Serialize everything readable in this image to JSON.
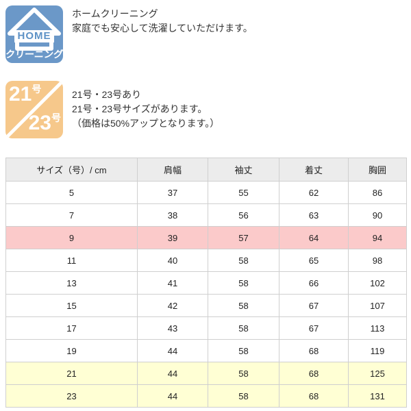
{
  "features": [
    {
      "badge": {
        "home_label": "HOME",
        "bottom_label": "クリーニング",
        "bg": "#6b98c8",
        "home_text_color": "#5e92c6"
      },
      "lines": [
        "ホームクリーニング",
        "家庭でも安心して洗濯していただけます。"
      ]
    },
    {
      "badge": {
        "top_num": "21",
        "top_suffix": "号",
        "bottom_num": "23",
        "bottom_suffix": "号",
        "bg": "#f6c88b"
      },
      "lines": [
        "21号・23号あり",
        "21号・23号サイズがあります。",
        "（価格は50%アップとなります。）"
      ]
    }
  ],
  "size_table": {
    "headers": [
      "サイズ（号）/ cm",
      "肩幅",
      "袖丈",
      "着丈",
      "胸囲"
    ],
    "rows": [
      {
        "values": [
          "5",
          "37",
          "55",
          "62",
          "86"
        ],
        "highlight": "none"
      },
      {
        "values": [
          "7",
          "38",
          "56",
          "63",
          "90"
        ],
        "highlight": "none"
      },
      {
        "values": [
          "9",
          "39",
          "57",
          "64",
          "94"
        ],
        "highlight": "pink"
      },
      {
        "values": [
          "11",
          "40",
          "58",
          "65",
          "98"
        ],
        "highlight": "none"
      },
      {
        "values": [
          "13",
          "41",
          "58",
          "66",
          "102"
        ],
        "highlight": "none"
      },
      {
        "values": [
          "15",
          "42",
          "58",
          "67",
          "107"
        ],
        "highlight": "none"
      },
      {
        "values": [
          "17",
          "43",
          "58",
          "67",
          "113"
        ],
        "highlight": "none"
      },
      {
        "values": [
          "19",
          "44",
          "58",
          "68",
          "119"
        ],
        "highlight": "none"
      },
      {
        "values": [
          "21",
          "44",
          "58",
          "68",
          "125"
        ],
        "highlight": "yellow"
      },
      {
        "values": [
          "23",
          "44",
          "58",
          "68",
          "131"
        ],
        "highlight": "yellow"
      }
    ],
    "colors": {
      "header_bg": "#ececec",
      "pink": "#fbcaca",
      "yellow": "#ffffd4",
      "border": "#cfcfcf"
    }
  }
}
